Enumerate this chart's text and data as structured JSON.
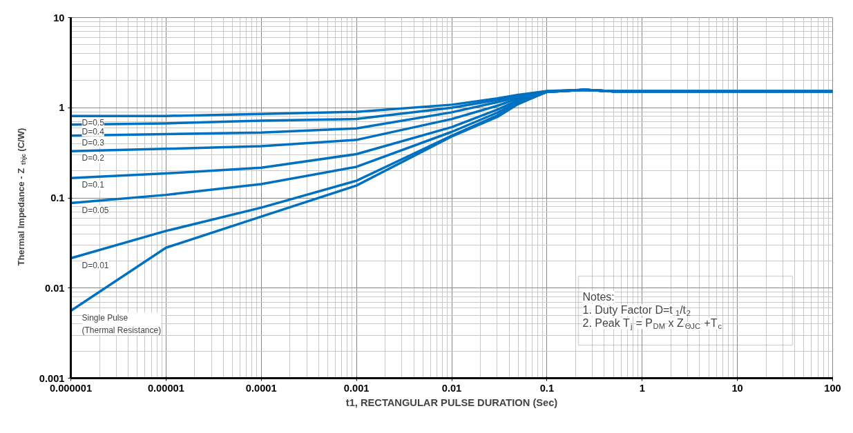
{
  "chart_data": {
    "type": "line",
    "xlabel": "t1, RECTANGULAR PULSE DURATION (Sec)",
    "ylabel": "Thermal Impedance - Z$_{thjc}$ (C/W)",
    "x": [
      1e-06,
      1e-05,
      0.0001,
      0.001,
      0.01,
      0.03,
      0.05,
      0.1,
      0.25,
      0.5,
      1,
      100
    ],
    "series": [
      {
        "name": "D=0.5",
        "color": "#0070c0",
        "values": [
          0.81,
          0.81,
          0.855,
          0.9,
          1.08,
          1.27,
          1.39,
          1.53,
          1.58,
          1.52,
          1.52,
          1.52
        ]
      },
      {
        "name": "D=0.4",
        "color": "#0070c0",
        "values": [
          0.65,
          0.67,
          0.72,
          0.75,
          1.0,
          1.22,
          1.36,
          1.52,
          1.58,
          1.52,
          1.52,
          1.52
        ]
      },
      {
        "name": "D=0.3",
        "color": "#0070c0",
        "values": [
          0.49,
          0.51,
          0.53,
          0.59,
          0.89,
          1.15,
          1.32,
          1.51,
          1.58,
          1.52,
          1.52,
          1.52
        ]
      },
      {
        "name": "D=0.2",
        "color": "#0070c0",
        "values": [
          0.33,
          0.35,
          0.375,
          0.44,
          0.75,
          1.05,
          1.27,
          1.5,
          1.58,
          1.52,
          1.52,
          1.52
        ]
      },
      {
        "name": "D=0.1",
        "color": "#0070c0",
        "values": [
          0.166,
          0.187,
          0.216,
          0.306,
          0.61,
          0.95,
          1.21,
          1.5,
          1.58,
          1.52,
          1.52,
          1.52
        ]
      },
      {
        "name": "D=0.05",
        "color": "#0070c0",
        "values": [
          0.0875,
          0.108,
          0.142,
          0.221,
          0.54,
          0.88,
          1.16,
          1.5,
          1.58,
          1.52,
          1.52,
          1.52
        ]
      },
      {
        "name": "D=0.01",
        "color": "#0070c0",
        "values": [
          0.0214,
          0.043,
          0.078,
          0.155,
          0.49,
          0.82,
          1.12,
          1.5,
          1.58,
          1.52,
          1.52,
          1.52
        ]
      },
      {
        "name": "Single Pulse\n(Thermal Resistance)",
        "color": "#0070c0",
        "values": [
          0.0056,
          0.028,
          0.062,
          0.137,
          0.48,
          0.79,
          1.1,
          1.5,
          1.58,
          1.52,
          1.52,
          1.52
        ]
      }
    ],
    "log": "xy",
    "xlim": [
      1e-06,
      100
    ],
    "ylim": [
      0.001,
      10
    ],
    "xticks": [
      {
        "value": 1e-06,
        "label": "0.000001"
      },
      {
        "value": 1e-05,
        "label": "0.00001"
      },
      {
        "value": 0.0001,
        "label": "0.0001"
      },
      {
        "value": 0.001,
        "label": "0.001"
      },
      {
        "value": 0.01,
        "label": "0.01"
      },
      {
        "value": 0.1,
        "label": "0.1"
      },
      1,
      10,
      100
    ],
    "yticks": [
      {
        "value": 0.001,
        "label": "0.001"
      },
      {
        "value": 0.01,
        "label": "0.01"
      },
      {
        "value": 0.1,
        "label": "0.1"
      },
      1,
      10
    ],
    "grid": true,
    "legend": false,
    "line_style": "solid",
    "marker": "none",
    "annotations": [
      "Notes:\n1. Duty Factor D=t$_{1}$/t$_{2}$\n2. Peak T$_{j}$ = P$_{DM}$ x Z$_{ΘJC}$ +T$_{c}$"
    ]
  }
}
